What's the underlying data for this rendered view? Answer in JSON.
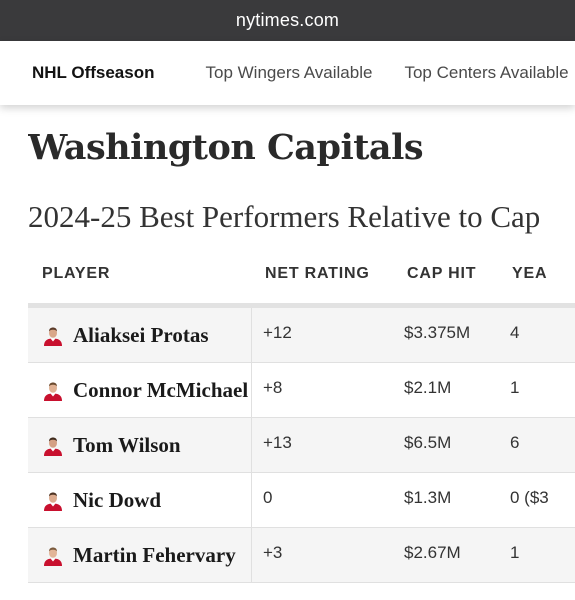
{
  "browser": {
    "url": "nytimes.com"
  },
  "nav": {
    "section": "NHL Offseason",
    "links": [
      "Top Wingers Available",
      "Top Centers Available"
    ]
  },
  "page": {
    "team_title": "Washington Capitals",
    "subtitle": "2024-25 Best Performers Relative to Cap"
  },
  "table": {
    "headers": {
      "player": "PLAYER",
      "net_rating": "NET RATING",
      "cap_hit": "CAP HIT",
      "years": "YEA"
    },
    "rows": [
      {
        "player": "Aliaksei Protas",
        "net_rating": "+12",
        "cap_hit": "$3.375M",
        "years": "4"
      },
      {
        "player": "Connor McMichael",
        "net_rating": "+8",
        "cap_hit": "$2.1M",
        "years": "1"
      },
      {
        "player": "Tom Wilson",
        "net_rating": "+13",
        "cap_hit": "$6.5M",
        "years": "6"
      },
      {
        "player": "Nic Dowd",
        "net_rating": "0",
        "cap_hit": "$1.3M",
        "years": "0 ($3"
      },
      {
        "player": "Martin Fehervary",
        "net_rating": "+3",
        "cap_hit": "$2.67M",
        "years": "1"
      }
    ],
    "avatar_icon": "player-headshot-icon",
    "jersey_color": "#c8102e"
  }
}
